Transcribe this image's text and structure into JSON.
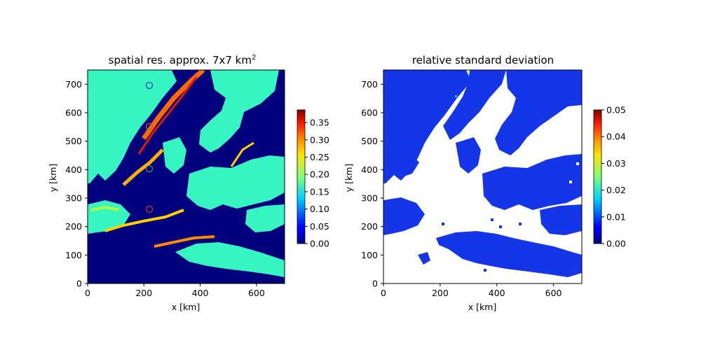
{
  "chart_data": [
    {
      "type": "heatmap",
      "title": "spatial res. approx. 7x7 km",
      "title_superscript": "2",
      "xlabel": "x [km]",
      "ylabel": "y [km]",
      "xlim": [
        0,
        700
      ],
      "ylim": [
        0,
        750
      ],
      "xticks": [
        "0",
        "200",
        "400",
        "600"
      ],
      "yticks": [
        "0",
        "100",
        "200",
        "300",
        "400",
        "500",
        "600",
        "700"
      ],
      "colormap": "jet",
      "clim": [
        0,
        0.38
      ],
      "colorbar_ticks": [
        "0.00",
        "0.05",
        "0.10",
        "0.15",
        "0.20",
        "0.25",
        "0.30",
        "0.35"
      ],
      "grid": false,
      "markers": [
        {
          "x": 218,
          "y": 700,
          "color": "#3b3bb8"
        },
        {
          "x": 218,
          "y": 555,
          "color": "#b86a2a"
        },
        {
          "x": 218,
          "y": 405,
          "color": "#3aa83a"
        },
        {
          "x": 218,
          "y": 262,
          "color": "#c0392b"
        }
      ]
    },
    {
      "type": "heatmap",
      "title": "relative standard deviation",
      "xlabel": "x [km]",
      "ylabel": "y [km]",
      "xlim": [
        0,
        700
      ],
      "ylim": [
        0,
        750
      ],
      "xticks": [
        "0",
        "200",
        "400",
        "600"
      ],
      "yticks": [
        "0",
        "100",
        "200",
        "300",
        "400",
        "500",
        "600",
        "700"
      ],
      "colormap": "jet",
      "clim": [
        0,
        0.05
      ],
      "colorbar_ticks": [
        "0.00",
        "0.01",
        "0.02",
        "0.03",
        "0.04",
        "0.05"
      ],
      "grid": false
    }
  ]
}
